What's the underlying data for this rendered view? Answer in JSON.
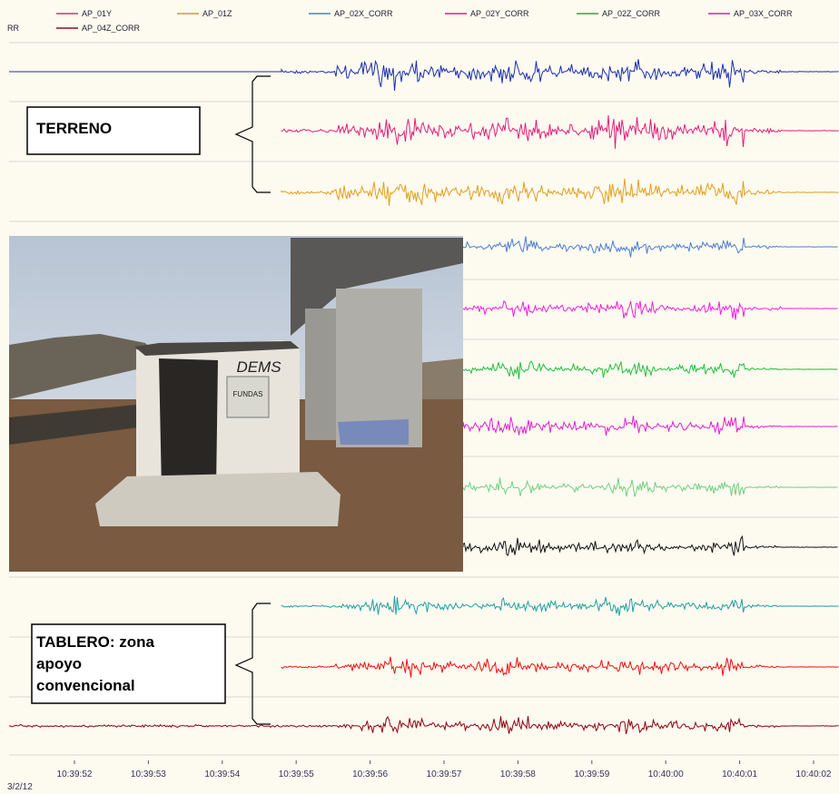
{
  "legend": {
    "items": [
      {
        "label": "AP_01Y",
        "color": "#d8306a"
      },
      {
        "label": "AP_01Z",
        "color": "#c8a030"
      },
      {
        "label": "AP_02X_CORR",
        "color": "#5080d0"
      },
      {
        "label": "AP_02Y_CORR",
        "color": "#e02080"
      },
      {
        "label": "AP_02Z_CORR",
        "color": "#20b040"
      },
      {
        "label": "AP_03X_CORR",
        "color": "#d020c0"
      },
      {
        "label": "RR",
        "color": null
      },
      {
        "label": "AP_04Z_CORR",
        "color": "#901020"
      }
    ]
  },
  "traces": {
    "colors": [
      "#1a30b0",
      "#e0207a",
      "#e0a020",
      "#4a7fd0",
      "#f020e0",
      "#20c040",
      "#e020d0",
      "#70d080",
      "#111111",
      "#20a0a0",
      "#f01010",
      "#900010"
    ]
  },
  "annotations": {
    "terreno": "TERRENO",
    "tablero": [
      "TABLERO: zona",
      "apoyo",
      "convencional"
    ]
  },
  "photo": {
    "sign": "FUNDAS",
    "graffiti": "DEMS"
  },
  "time_axis": {
    "ticks": [
      "10:39:52",
      "10:39:53",
      "10:39:54",
      "10:39:55",
      "10:39:56",
      "10:39:57",
      "10:39:58",
      "10:39:59",
      "10:40:00",
      "10:40:01",
      "10:40:02"
    ],
    "date": "3/2/12"
  }
}
